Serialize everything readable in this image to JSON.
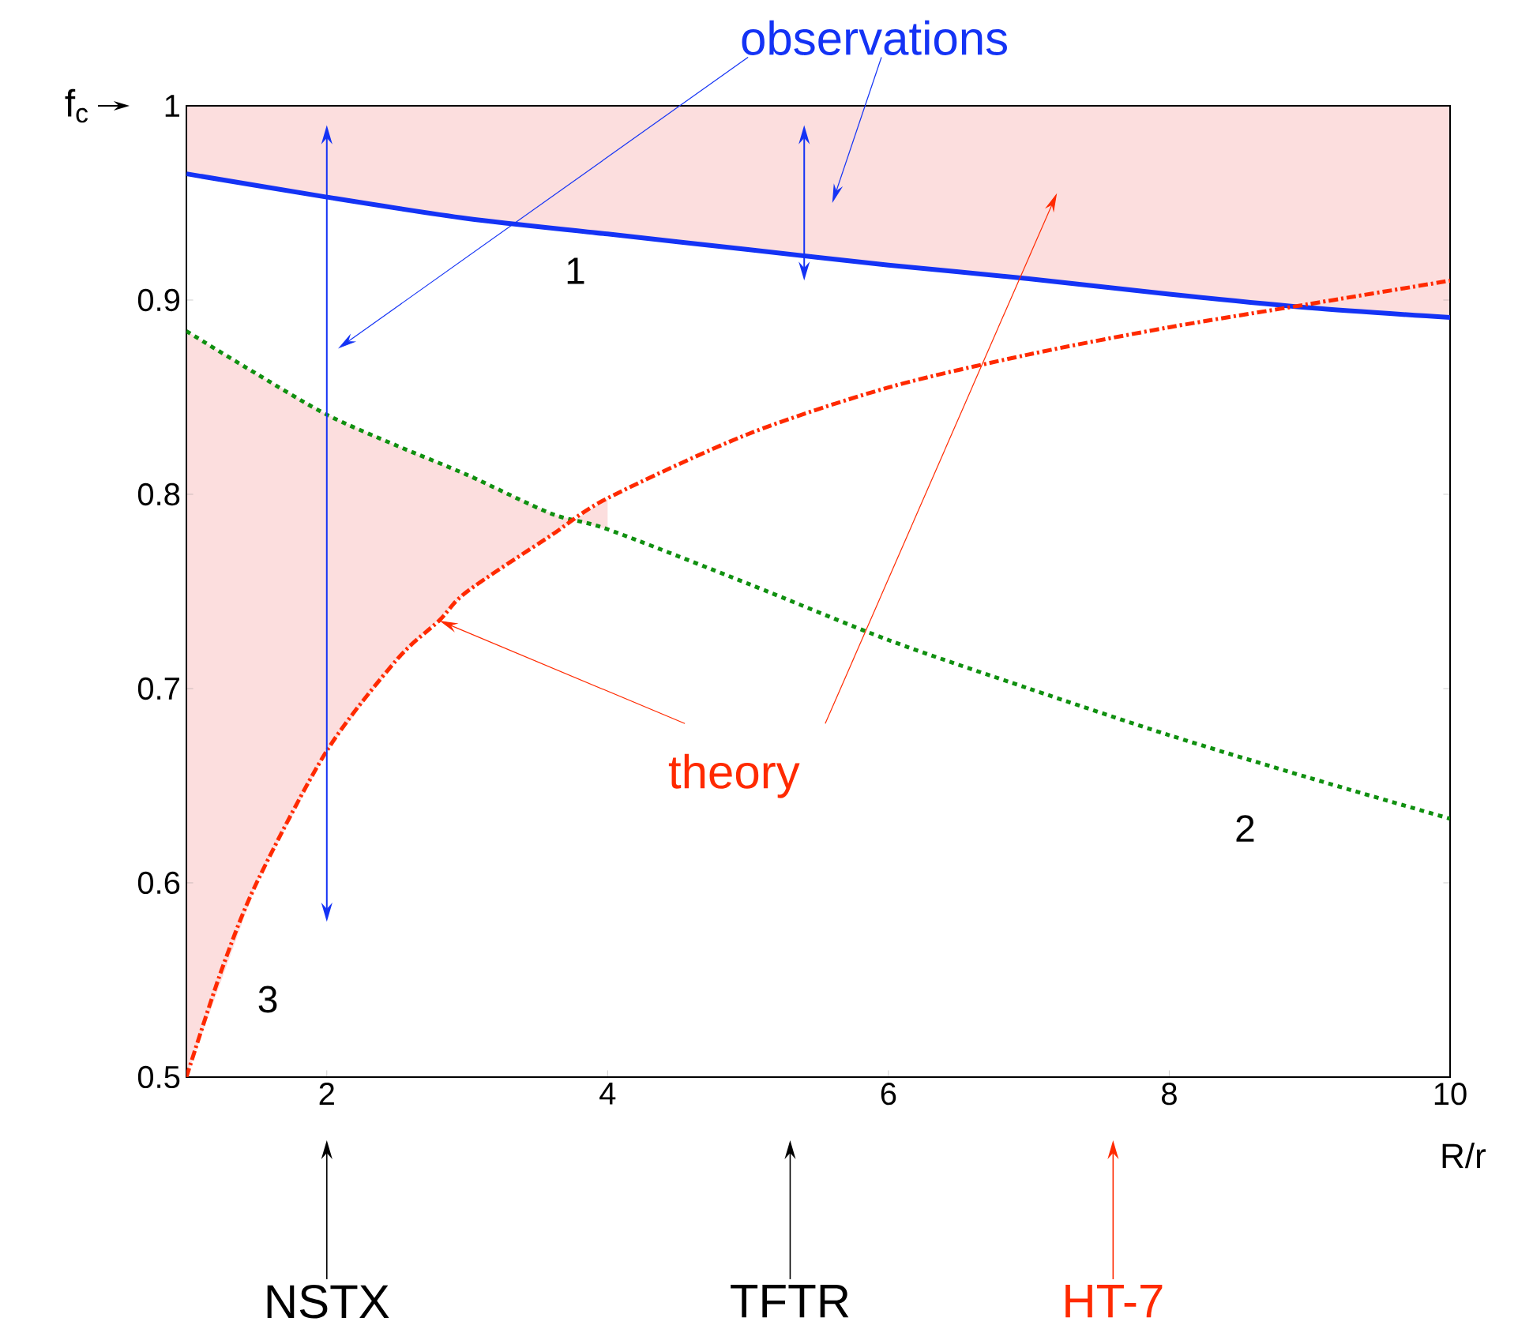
{
  "chart_data": {
    "type": "line",
    "xlabel": "R/r",
    "ylabel": "f$_{c}$",
    "xlim": [
      1,
      10
    ],
    "ylim": [
      0.5,
      1
    ],
    "xticks": [
      2,
      4,
      6,
      8,
      10
    ],
    "yticks": [
      0.5,
      0.6,
      0.7,
      0.8,
      0.9,
      1
    ],
    "grid": false,
    "marker": "none",
    "series": [
      {
        "color": "#1433f5",
        "line_style": "solid",
        "x": [
          1,
          2,
          3,
          4,
          5,
          6,
          7,
          8,
          9,
          10
        ],
        "values": [
          0.965,
          0.953,
          0.942,
          0.934,
          0.926,
          0.918,
          0.911,
          0.903,
          0.896,
          0.891
        ]
      },
      {
        "color": "#109010",
        "line_style": "dotted",
        "x": [
          1,
          1.5,
          2,
          2.5,
          3,
          3.6,
          4,
          5,
          6,
          7,
          8,
          9,
          10
        ],
        "values": [
          0.884,
          0.862,
          0.841,
          0.825,
          0.81,
          0.79,
          0.782,
          0.754,
          0.725,
          0.7,
          0.676,
          0.654,
          0.633
        ]
      },
      {
        "color": "#ff2a00",
        "line_style": "dashed",
        "x": [
          1,
          1.25,
          1.5,
          2,
          2.5,
          2.8,
          3,
          3.6,
          4,
          5,
          6,
          7,
          8,
          9,
          10
        ],
        "values": [
          0.5,
          0.555,
          0.6,
          0.668,
          0.715,
          0.735,
          0.75,
          0.779,
          0.798,
          0.831,
          0.855,
          0.872,
          0.886,
          0.898,
          0.91
        ]
      }
    ],
    "annotations": [
      "observations",
      {
        "text": "theory",
        "x": 2.8,
        "y": 0.735
      },
      "1",
      "2",
      "3",
      "NSTX",
      "TFTR",
      "HT-7"
    ]
  }
}
